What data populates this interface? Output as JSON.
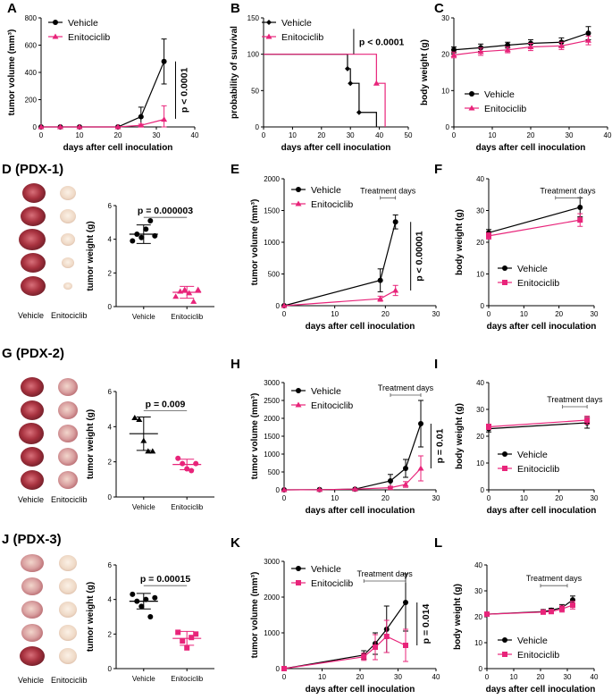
{
  "colors": {
    "vehicle": "#000000",
    "treated": "#e8247a",
    "tumor_red": "#a8323f",
    "tumor_pale": "#efd6c2"
  },
  "chart_data": [
    {
      "id": "A",
      "type": "line",
      "ylabel": "tumor volume (mm³)",
      "xlabel": "days after cell inoculation",
      "xlim": [
        0,
        40
      ],
      "ylim": [
        0,
        800
      ],
      "xticks": [
        0,
        10,
        20,
        30,
        40
      ],
      "yticks": [
        0,
        200,
        400,
        600,
        800
      ],
      "series": [
        {
          "name": "Vehicle",
          "x": [
            0,
            5,
            10,
            20,
            26,
            32
          ],
          "y": [
            0,
            0,
            0,
            0,
            75,
            480
          ],
          "err": [
            0,
            0,
            0,
            0,
            70,
            165
          ]
        },
        {
          "name": "Enitociclib",
          "x": [
            0,
            5,
            10,
            20,
            26,
            32
          ],
          "y": [
            0,
            0,
            0,
            0,
            12,
            55
          ],
          "err": [
            0,
            0,
            0,
            0,
            8,
            100
          ]
        }
      ],
      "annotation": {
        "text": "p < 0.0001",
        "style": "bracket",
        "x": 35,
        "y0": 60,
        "y1": 480,
        "dx": 22
      },
      "legend": "top-left"
    },
    {
      "id": "B",
      "type": "line",
      "ylabel": "probability of survival",
      "xlabel": "days after cell inoculation",
      "xlim": [
        0,
        50
      ],
      "ylim": [
        0,
        150
      ],
      "xticks": [
        0,
        10,
        20,
        30,
        40,
        50
      ],
      "yticks": [
        0,
        50,
        100,
        150
      ],
      "series": [
        {
          "name": "Vehicle",
          "x": [
            0,
            29,
            29,
            30,
            30,
            33,
            33,
            39,
            39
          ],
          "y": [
            100,
            100,
            80,
            80,
            60,
            60,
            20,
            20,
            0
          ],
          "mx": [
            29,
            30,
            33
          ],
          "my": [
            80,
            60,
            20
          ]
        },
        {
          "name": "Enitociclib",
          "x": [
            0,
            39,
            39,
            42,
            42
          ],
          "y": [
            100,
            100,
            60,
            60,
            0
          ],
          "mx": [
            39
          ],
          "my": [
            60
          ]
        }
      ],
      "annotation": {
        "text": "p < 0.0001",
        "style": "text",
        "x": 33,
        "y": 120,
        "bar": true,
        "dy": 0
      },
      "legend": "top-left"
    },
    {
      "id": "C",
      "type": "line",
      "ylabel": "body weight (g)",
      "xlabel": "days after cell inoculation",
      "xlim": [
        0,
        40
      ],
      "ylim": [
        0,
        30
      ],
      "xticks": [
        0,
        10,
        20,
        30,
        40
      ],
      "yticks": [
        0,
        10,
        20,
        30
      ],
      "series": [
        {
          "name": "Vehicle",
          "x": [
            0,
            7,
            14,
            20,
            28,
            35
          ],
          "y": [
            21.2,
            21.8,
            22.5,
            23.0,
            23.3,
            25.8
          ],
          "err": [
            0.8,
            1.0,
            0.8,
            1.0,
            1.2,
            1.8
          ]
        },
        {
          "name": "Enitociclib",
          "x": [
            0,
            7,
            14,
            20,
            28,
            35
          ],
          "y": [
            19.8,
            20.7,
            21.2,
            22.0,
            22.3,
            23.8
          ],
          "err": [
            0.8,
            1.0,
            0.8,
            1.0,
            1.0,
            1.2
          ]
        }
      ],
      "legend": "bottom-right"
    },
    {
      "id": "D_scatter",
      "type": "scatter",
      "ylabel": "tumor weight (g)",
      "categories": [
        "Vehicle",
        "Enitociclib"
      ],
      "ylim": [
        0,
        6
      ],
      "yticks": [
        0,
        2,
        4,
        6
      ],
      "groups": [
        {
          "name": "Vehicle",
          "points": [
            3.9,
            4.3,
            4.1,
            4.6,
            5.1,
            4.2
          ],
          "mean": 4.3,
          "sd": 0.55,
          "marker": "circle"
        },
        {
          "name": "Enitociclib",
          "points": [
            0.6,
            0.9,
            1.0,
            0.8,
            0.3,
            1.0
          ],
          "mean": 0.85,
          "sd": 0.35,
          "marker": "triangle"
        }
      ],
      "annotation": {
        "text": "p = 0.000003",
        "style": "line",
        "y": 5.3,
        "dy": -3
      }
    },
    {
      "id": "E",
      "type": "line",
      "ylabel": "tumor volume (mm³)",
      "xlabel": "days after cell inoculation",
      "xlim": [
        0,
        30
      ],
      "ylim": [
        0,
        2000
      ],
      "xticks": [
        0,
        10,
        20,
        30
      ],
      "yticks": [
        0,
        500,
        1000,
        1500,
        2000
      ],
      "series": [
        {
          "name": "Vehicle",
          "x": [
            0,
            19,
            22
          ],
          "y": [
            0,
            400,
            1320
          ],
          "err": [
            0,
            180,
            110
          ]
        },
        {
          "name": "Enitociclib",
          "x": [
            0,
            19,
            22
          ],
          "y": [
            0,
            110,
            240
          ],
          "err": [
            0,
            40,
            80
          ]
        }
      ],
      "annotation": {
        "text": "p < 0.00001",
        "style": "bracket",
        "x": 25,
        "y0": 240,
        "y1": 1320,
        "dx": 18
      },
      "treatment": {
        "label": "Treatment days",
        "x0": 19,
        "x1": 22,
        "y": 1700
      },
      "legend": "top-left"
    },
    {
      "id": "F",
      "type": "line",
      "ylabel": "body weight (g)",
      "xlabel": "days after cell inoculation",
      "xlim": [
        0,
        30
      ],
      "ylim": [
        0,
        40
      ],
      "xticks": [
        0,
        10,
        20,
        30
      ],
      "yticks": [
        0,
        10,
        20,
        30,
        40
      ],
      "series": [
        {
          "name": "Vehicle",
          "x": [
            0,
            26
          ],
          "y": [
            23,
            31
          ],
          "err": [
            1,
            3
          ]
        },
        {
          "name": "Enitociclib",
          "x": [
            0,
            26
          ],
          "y": [
            22,
            27
          ],
          "err": [
            1,
            2
          ]
        }
      ],
      "treatment": {
        "label": "Treatment days",
        "x0": 19,
        "x1": 26,
        "y": 34
      },
      "legend": "bottom-left"
    },
    {
      "id": "G_scatter",
      "type": "scatter",
      "ylabel": "tumor weight (g)",
      "categories": [
        "Vehicle",
        "Enitociclib"
      ],
      "ylim": [
        0,
        6
      ],
      "yticks": [
        0,
        2,
        4,
        6
      ],
      "groups": [
        {
          "name": "Vehicle",
          "points": [
            4.5,
            4.4,
            3.2,
            2.6,
            2.6
          ],
          "mean": 3.6,
          "sd": 0.95,
          "marker": "triangle-black"
        },
        {
          "name": "Enitociclib",
          "points": [
            2.2,
            1.9,
            1.6,
            1.5,
            1.9
          ],
          "mean": 1.85,
          "sd": 0.3,
          "marker": "circle-pink"
        }
      ],
      "annotation": {
        "text": "p = 0.009",
        "style": "line",
        "y": 4.9,
        "dy": -3
      }
    },
    {
      "id": "H",
      "type": "line",
      "ylabel": "tumor volume (mm³)",
      "xlabel": "days after cell inoculation",
      "xlim": [
        0,
        30
      ],
      "ylim": [
        0,
        3000
      ],
      "xticks": [
        0,
        10,
        20,
        30
      ],
      "yticks": [
        0,
        500,
        1000,
        1500,
        2000,
        2500,
        3000
      ],
      "series": [
        {
          "name": "Vehicle",
          "x": [
            0,
            7,
            14,
            21,
            24,
            27
          ],
          "y": [
            0,
            5,
            20,
            250,
            600,
            1850
          ],
          "err": [
            0,
            5,
            10,
            180,
            250,
            650
          ]
        },
        {
          "name": "Enitociclib",
          "x": [
            0,
            7,
            14,
            21,
            24,
            27
          ],
          "y": [
            0,
            5,
            20,
            60,
            150,
            600
          ],
          "err": [
            0,
            5,
            10,
            40,
            80,
            350
          ]
        }
      ],
      "annotation": {
        "text": "p = 0.01",
        "style": "bracket",
        "x": 29,
        "y0": 600,
        "y1": 1850,
        "dx": 16
      },
      "treatment": {
        "label": "Treatment days",
        "x0": 21,
        "x1": 27,
        "y": 2650
      },
      "legend": "top-left"
    },
    {
      "id": "I",
      "type": "line",
      "ylabel": "body weight (g)",
      "xlabel": "days after cell inoculation",
      "xlim": [
        0,
        30
      ],
      "ylim": [
        0,
        40
      ],
      "xticks": [
        0,
        10,
        20,
        30
      ],
      "yticks": [
        0,
        10,
        20,
        30,
        40
      ],
      "series": [
        {
          "name": "Vehicle",
          "x": [
            0,
            28
          ],
          "y": [
            22.8,
            25.0
          ],
          "err": [
            1.2,
            2.0
          ]
        },
        {
          "name": "Enitociclib",
          "x": [
            0,
            28
          ],
          "y": [
            23.5,
            26.0
          ],
          "err": [
            1,
            1.5
          ]
        }
      ],
      "treatment": {
        "label": "Treatment days",
        "x0": 21,
        "x1": 28,
        "y": 31
      },
      "legend": "bottom-left"
    },
    {
      "id": "J_scatter",
      "type": "scatter",
      "ylabel": "tumor weight (g)",
      "categories": [
        "Vehicle",
        "Enitociclib"
      ],
      "ylim": [
        0,
        6
      ],
      "yticks": [
        0,
        2,
        4,
        6
      ],
      "groups": [
        {
          "name": "Vehicle",
          "points": [
            4.3,
            3.9,
            3.6,
            4.0,
            3.0,
            4.1
          ],
          "mean": 3.9,
          "sd": 0.45,
          "marker": "circle"
        },
        {
          "name": "Enitociclib",
          "points": [
            2.1,
            1.6,
            1.2,
            1.8,
            2.0
          ],
          "mean": 1.75,
          "sd": 0.4,
          "marker": "square-pink"
        }
      ],
      "annotation": {
        "text": "p = 0.00015",
        "style": "line",
        "y": 4.8,
        "dy": -3
      }
    },
    {
      "id": "K",
      "type": "line",
      "ylabel": "tumor volume (mm³)",
      "xlabel": "days after cell inoculation",
      "xlim": [
        0,
        40
      ],
      "ylim": [
        0,
        3000
      ],
      "xticks": [
        0,
        10,
        20,
        30,
        40
      ],
      "yticks": [
        0,
        1000,
        2000,
        3000
      ],
      "series": [
        {
          "name": "Vehicle",
          "x": [
            0,
            21,
            24,
            27,
            32
          ],
          "y": [
            0,
            380,
            700,
            1100,
            1850
          ],
          "err": [
            0,
            120,
            300,
            650,
            800
          ]
        },
        {
          "name": "Enitociclib",
          "x": [
            0,
            21,
            24,
            27,
            32
          ],
          "y": [
            0,
            330,
            600,
            900,
            650
          ],
          "err": [
            0,
            100,
            350,
            450,
            450
          ]
        }
      ],
      "annotation": {
        "text": "p = 0.014",
        "style": "bracket",
        "x": 35,
        "y0": 650,
        "y1": 1850,
        "dx": 14
      },
      "treatment": {
        "label": "Treatment days",
        "x0": 21,
        "x1": 32,
        "y": 2450
      },
      "legend": "top-left"
    },
    {
      "id": "L",
      "type": "line",
      "ylabel": "body weight (g)",
      "xlabel": "days after cell inoculation",
      "xlim": [
        0,
        40
      ],
      "ylim": [
        0,
        40
      ],
      "xticks": [
        0,
        10,
        20,
        30,
        40
      ],
      "yticks": [
        0,
        10,
        20,
        30,
        40
      ],
      "series": [
        {
          "name": "Vehicle",
          "x": [
            0,
            21,
            24,
            28,
            32
          ],
          "y": [
            21,
            22,
            22.5,
            23.5,
            26.5
          ],
          "err": [
            0.5,
            0.8,
            0.8,
            1.2,
            1.5
          ]
        },
        {
          "name": "Enitociclib",
          "x": [
            0,
            21,
            24,
            28,
            32
          ],
          "y": [
            21,
            21.8,
            22,
            23,
            24.5
          ],
          "err": [
            0.5,
            0.8,
            0.8,
            1.2,
            1.5
          ]
        }
      ],
      "treatment": {
        "label": "Treatment days",
        "x0": 20,
        "x1": 30,
        "y": 32
      },
      "legend": "bottom-left"
    }
  ],
  "panel_letters": {
    "A": "A",
    "B": "B",
    "C": "C",
    "D": "D (PDX-1)",
    "E": "E",
    "F": "F",
    "G": "G (PDX-2)",
    "H": "H",
    "I": "I",
    "J": "J (PDX-3)",
    "K": "K",
    "L": "L"
  },
  "legend_labels": {
    "vehicle": "Vehicle",
    "treated": "Enitociclib"
  },
  "photo_labels": {
    "vehicle": "Vehicle",
    "treated": "Enitociclib"
  }
}
